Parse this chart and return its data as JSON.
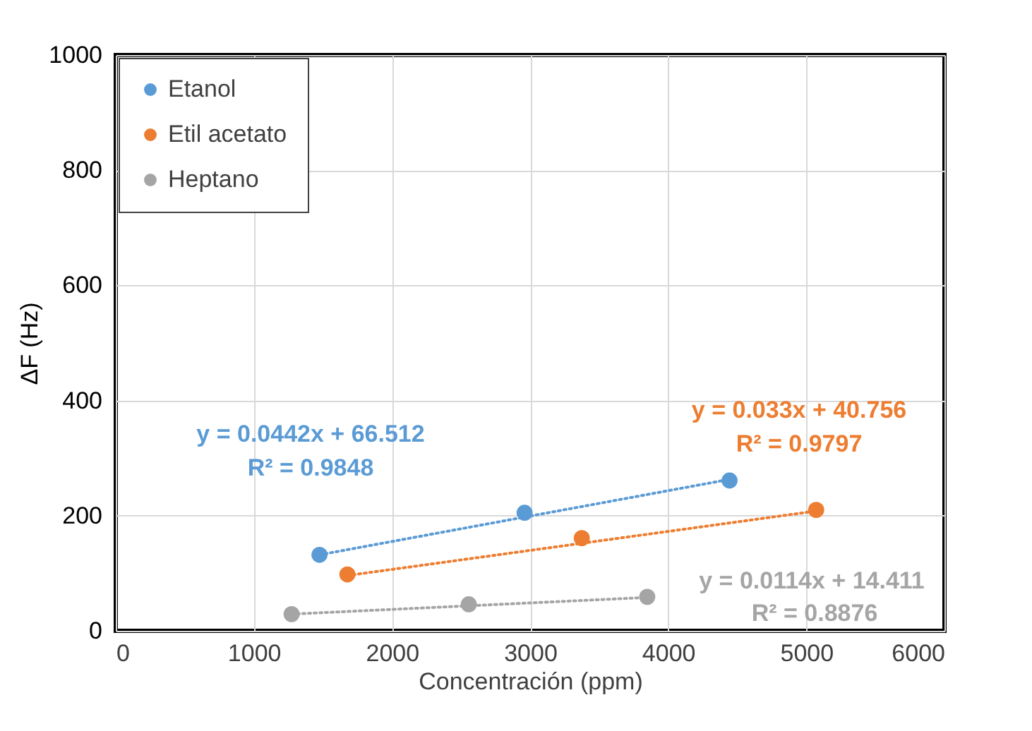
{
  "chart_data": {
    "type": "scatter",
    "xlabel": "Concentración (ppm)",
    "ylabel": "ΔF (Hz)",
    "xlim": [
      0,
      6000
    ],
    "xticks": [
      0,
      1000,
      2000,
      3000,
      4000,
      5000,
      6000
    ],
    "ylim": [
      0,
      1000
    ],
    "yticks": [
      0,
      200,
      400,
      600,
      800,
      1000
    ],
    "grid": true,
    "legend": "top left",
    "series": [
      {
        "name": "Etanol",
        "marker": "circle",
        "color": "#5b9bd5",
        "x": [
          1475,
          2960,
          4444
        ],
        "values": [
          132,
          205,
          261
        ]
      },
      {
        "name": "Etil acetato",
        "marker": "circle",
        "color": "#ed7d31",
        "x": [
          1677,
          3374,
          5071
        ],
        "values": [
          98,
          161,
          210
        ]
      },
      {
        "name": "Heptano",
        "marker": "circle",
        "color": "#a5a5a5",
        "x": [
          1273,
          2556,
          3848
        ],
        "values": [
          29,
          46,
          59
        ]
      },
      {
        "type": "line",
        "line_style": "dotted",
        "color": "#5b9bd5",
        "x": [
          1475,
          4444
        ],
        "values": [
          132,
          263
        ]
      },
      {
        "type": "line",
        "line_style": "dotted",
        "color": "#ed7d31",
        "x": [
          1677,
          5071
        ],
        "values": [
          96,
          208
        ]
      },
      {
        "type": "line",
        "line_style": "dotted",
        "color": "#a5a5a5",
        "x": [
          1273,
          3848
        ],
        "values": [
          29,
          58
        ]
      }
    ],
    "annotations": [
      "y = 0.0442x + 66.512",
      "R² = 0.9848",
      "y = 0.033x + 40.756",
      "R² = 0.9797",
      "y = 0.0114x + 14.411",
      "R² = 0.8876"
    ]
  }
}
